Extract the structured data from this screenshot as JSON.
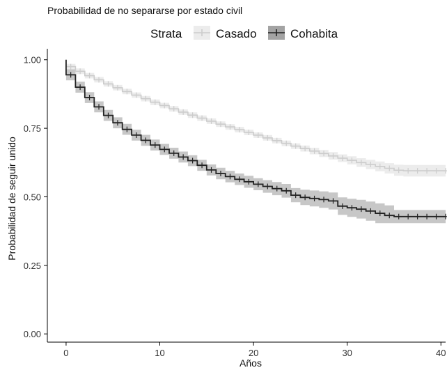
{
  "chart_data": {
    "type": "line",
    "title": "Probabilidad de no separarse por estado civil",
    "xlabel": "Años",
    "ylabel": "Probabilidad de seguir unido",
    "xlim": [
      -2,
      40.5
    ],
    "ylim": [
      -0.03,
      1.04
    ],
    "x_ticks": [
      "0",
      "10",
      "20",
      "30",
      "40"
    ],
    "y_ticks": [
      "0.00",
      "0.25",
      "0.50",
      "0.75",
      "1.00"
    ],
    "grid": false,
    "legend": {
      "title": "Strata",
      "position": "top"
    },
    "series": [
      {
        "name": "Casado",
        "color": "#cccccc",
        "band_color": "#e6e6e6",
        "x": [
          0,
          1,
          2,
          3,
          4,
          5,
          6,
          7,
          8,
          9,
          10,
          11,
          12,
          13,
          14,
          15,
          16,
          17,
          18,
          19,
          20,
          21,
          22,
          23,
          24,
          25,
          26,
          27,
          28,
          29,
          30,
          31,
          32,
          33,
          34,
          35,
          36,
          37,
          38,
          39,
          40
        ],
        "y": [
          0.975,
          0.958,
          0.942,
          0.927,
          0.912,
          0.898,
          0.884,
          0.871,
          0.858,
          0.845,
          0.833,
          0.821,
          0.809,
          0.798,
          0.787,
          0.776,
          0.765,
          0.755,
          0.745,
          0.735,
          0.725,
          0.715,
          0.705,
          0.695,
          0.685,
          0.676,
          0.667,
          0.658,
          0.649,
          0.641,
          0.633,
          0.625,
          0.618,
          0.611,
          0.604,
          0.597,
          0.595,
          0.595,
          0.595,
          0.595,
          0.595
        ],
        "lower": [
          0.965,
          0.948,
          0.932,
          0.917,
          0.902,
          0.888,
          0.874,
          0.861,
          0.848,
          0.835,
          0.823,
          0.811,
          0.799,
          0.788,
          0.777,
          0.766,
          0.755,
          0.745,
          0.735,
          0.725,
          0.715,
          0.705,
          0.695,
          0.685,
          0.675,
          0.665,
          0.655,
          0.645,
          0.636,
          0.627,
          0.618,
          0.609,
          0.601,
          0.593,
          0.585,
          0.577,
          0.574,
          0.574,
          0.574,
          0.574,
          0.574
        ],
        "upper": [
          0.985,
          0.968,
          0.952,
          0.937,
          0.922,
          0.908,
          0.894,
          0.881,
          0.868,
          0.855,
          0.843,
          0.831,
          0.819,
          0.808,
          0.797,
          0.786,
          0.775,
          0.765,
          0.755,
          0.745,
          0.735,
          0.725,
          0.715,
          0.705,
          0.695,
          0.687,
          0.679,
          0.671,
          0.663,
          0.655,
          0.648,
          0.641,
          0.635,
          0.629,
          0.623,
          0.617,
          0.616,
          0.616,
          0.616,
          0.616,
          0.616
        ]
      },
      {
        "name": "Cohabita",
        "color": "#222222",
        "band_color": "#999999",
        "x": [
          0,
          1,
          2,
          3,
          4,
          5,
          6,
          7,
          8,
          9,
          10,
          11,
          12,
          13,
          14,
          15,
          16,
          17,
          18,
          19,
          20,
          21,
          22,
          23,
          24,
          25,
          26,
          27,
          28,
          29,
          30,
          31,
          32,
          33,
          34,
          35,
          36,
          37,
          38,
          39,
          40
        ],
        "y": [
          0.945,
          0.9,
          0.862,
          0.828,
          0.797,
          0.77,
          0.746,
          0.725,
          0.706,
          0.689,
          0.673,
          0.659,
          0.645,
          0.632,
          0.615,
          0.598,
          0.585,
          0.574,
          0.564,
          0.555,
          0.546,
          0.538,
          0.53,
          0.522,
          0.506,
          0.498,
          0.494,
          0.49,
          0.485,
          0.466,
          0.46,
          0.455,
          0.448,
          0.44,
          0.432,
          0.428,
          0.428,
          0.428,
          0.428,
          0.428,
          0.428
        ],
        "lower": [
          0.925,
          0.88,
          0.842,
          0.808,
          0.777,
          0.75,
          0.726,
          0.705,
          0.686,
          0.669,
          0.653,
          0.639,
          0.625,
          0.612,
          0.595,
          0.578,
          0.564,
          0.553,
          0.543,
          0.533,
          0.524,
          0.515,
          0.506,
          0.497,
          0.48,
          0.47,
          0.465,
          0.46,
          0.454,
          0.434,
          0.427,
          0.421,
          0.413,
          0.404,
          0.404,
          0.404,
          0.404,
          0.404,
          0.404,
          0.404,
          0.404
        ],
        "upper": [
          0.965,
          0.92,
          0.882,
          0.848,
          0.817,
          0.79,
          0.766,
          0.745,
          0.726,
          0.709,
          0.693,
          0.679,
          0.665,
          0.652,
          0.635,
          0.618,
          0.606,
          0.595,
          0.585,
          0.577,
          0.568,
          0.561,
          0.554,
          0.547,
          0.532,
          0.526,
          0.523,
          0.52,
          0.516,
          0.498,
          0.493,
          0.489,
          0.483,
          0.476,
          0.469,
          0.452,
          0.452,
          0.452,
          0.452,
          0.452,
          0.452
        ]
      }
    ]
  }
}
